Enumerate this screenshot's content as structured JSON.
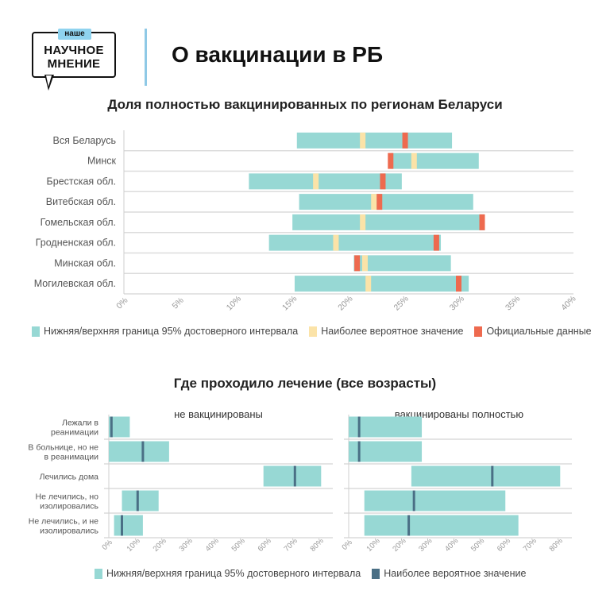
{
  "header": {
    "logo_badge": "наше",
    "logo_line1": "НАУЧНОЕ",
    "logo_line2": "МНЕНИЕ",
    "title": "О вакцинации в РБ"
  },
  "colors": {
    "interval": "#97d8d4",
    "likely": "#fbe3a8",
    "official": "#ee6a4f",
    "likely_dark": "#4a6f85",
    "accent_bar": "#8fc9e6"
  },
  "chart_data": [
    {
      "type": "bar",
      "subtype": "range",
      "title": "Доля полностью вакцинированных по регионам Беларуси",
      "categories": [
        "Вся Беларусь",
        "Минск",
        "Брестская обл.",
        "Витебская обл.",
        "Гомельская обл.",
        "Гродненская обл.",
        "Минская обл.",
        "Могилевская обл."
      ],
      "lower": [
        15.5,
        23.9,
        11.2,
        15.7,
        15.1,
        13.0,
        20.6,
        15.3
      ],
      "upper": [
        29.4,
        31.8,
        24.9,
        31.3,
        32.3,
        28.4,
        29.3,
        30.9
      ],
      "likely": [
        21.4,
        26.0,
        17.2,
        22.4,
        21.4,
        19.0,
        21.6,
        21.9
      ],
      "official": [
        25.2,
        23.9,
        23.2,
        22.9,
        32.1,
        28.0,
        20.9,
        30.0
      ],
      "xlim": [
        0,
        40
      ],
      "xticks": [
        "0%",
        "5%",
        "10%",
        "15%",
        "20%",
        "25%",
        "30%",
        "35%",
        "40%"
      ],
      "grid": true,
      "legend": [
        "Нижняя/верхняя граница 95% достоверного интервала",
        "Наиболее вероятное значение",
        "Официальные данные"
      ],
      "legend_position": "bottom"
    },
    {
      "type": "bar",
      "subtype": "range",
      "title": "Где проходило лечение (все возрасты)",
      "categories": [
        "Лежали в реанимации",
        "В больнице, но не в реанимации",
        "Лечились дома",
        "Не лечились, но изолировались",
        "Не лечились, и не изолировались"
      ],
      "category_labels": [
        [
          "Лежали в",
          "реанимации"
        ],
        [
          "В больнице, но не",
          "в реанимации"
        ],
        [
          "Лечились дома"
        ],
        [
          "Не лечились, но",
          "изолировались"
        ],
        [
          "Не лечились, и не",
          "изолировались"
        ]
      ],
      "xlim": [
        0,
        80
      ],
      "xticks": [
        "0%",
        "10%",
        "20%",
        "30%",
        "40%",
        "50%",
        "60%",
        "70%",
        "80%"
      ],
      "panels": [
        {
          "name": "не вакцинированы",
          "lower": [
            0,
            0,
            59,
            5,
            2
          ],
          "upper": [
            8,
            23,
            81,
            19,
            13
          ],
          "likely": [
            1,
            13,
            71,
            11,
            5
          ]
        },
        {
          "name": "вакцинированы полностью",
          "lower": [
            0,
            0,
            24,
            6,
            6
          ],
          "upper": [
            28,
            28,
            81,
            60,
            65
          ],
          "likely": [
            4,
            4,
            55,
            25,
            23
          ]
        }
      ],
      "legend": [
        "Нижняя/верхняя граница 95% достоверного интервала",
        "Наиболее вероятное значение"
      ],
      "legend_position": "bottom"
    }
  ]
}
